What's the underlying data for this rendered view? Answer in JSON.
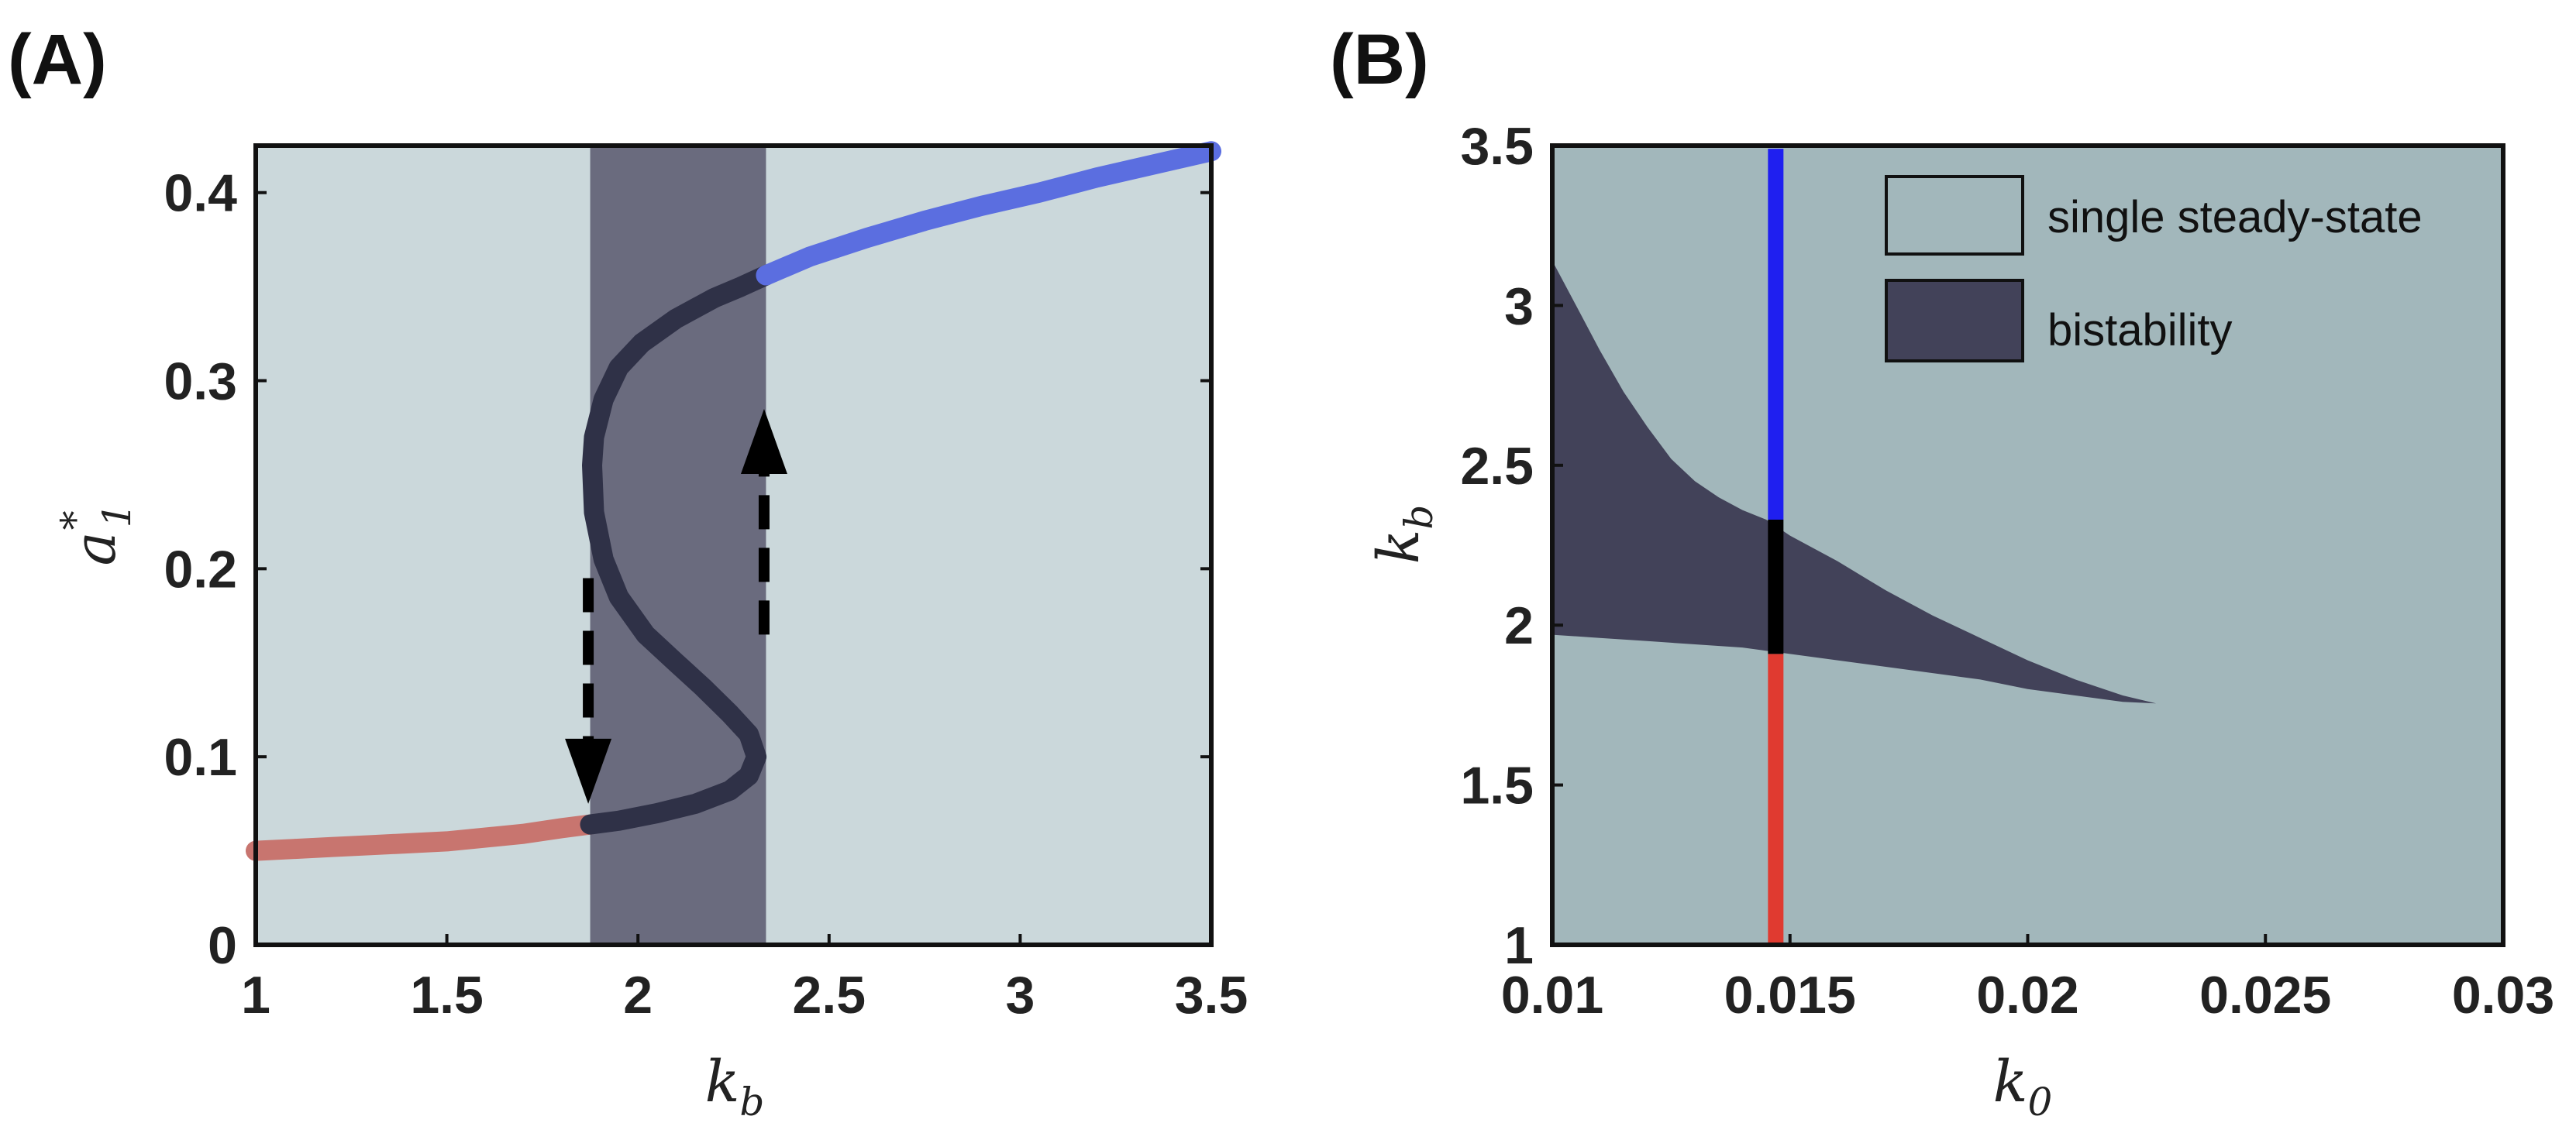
{
  "chart_data": [
    {
      "panel_label": "(A)",
      "type": "scatter",
      "xlabel": {
        "main": "k",
        "sub": "b"
      },
      "ylabel": {
        "main": "a",
        "sub": "1",
        "sup": "*"
      },
      "xlim": [
        1,
        3.5
      ],
      "ylim": [
        0,
        0.425
      ],
      "xticks": [
        "1",
        "1.5",
        "2",
        "2.5",
        "3",
        "3.5"
      ],
      "xtick_values": [
        1,
        1.5,
        2,
        2.5,
        3,
        3.5
      ],
      "yticks": [
        "0",
        "0.1",
        "0.2",
        "0.3",
        "0.4"
      ],
      "ytick_values": [
        0,
        0.1,
        0.2,
        0.3,
        0.4
      ],
      "grid": false,
      "background_color": "#cbd8db",
      "bistable_band": {
        "x": [
          1.875,
          2.335
        ],
        "color": "#6a6b7e"
      },
      "series": [
        {
          "color": "#c8756f",
          "points": [
            [
              1.0,
              0.05
            ],
            [
              1.1,
              0.051
            ],
            [
              1.2,
              0.052
            ],
            [
              1.3,
              0.053
            ],
            [
              1.4,
              0.054
            ],
            [
              1.5,
              0.055
            ],
            [
              1.6,
              0.057
            ],
            [
              1.7,
              0.059
            ],
            [
              1.8,
              0.062
            ],
            [
              1.875,
              0.064
            ]
          ]
        },
        {
          "color": "#2f3147",
          "points": [
            [
              1.875,
              0.064
            ],
            [
              1.95,
              0.066
            ],
            [
              2.05,
              0.07
            ],
            [
              2.15,
              0.075
            ],
            [
              2.24,
              0.082
            ],
            [
              2.29,
              0.09
            ],
            [
              2.31,
              0.1
            ],
            [
              2.29,
              0.112
            ],
            [
              2.24,
              0.123
            ],
            [
              2.17,
              0.137
            ],
            [
              2.1,
              0.15
            ],
            [
              2.02,
              0.165
            ],
            [
              1.95,
              0.185
            ],
            [
              1.91,
              0.205
            ],
            [
              1.885,
              0.23
            ],
            [
              1.88,
              0.255
            ],
            [
              1.885,
              0.27
            ],
            [
              1.91,
              0.29
            ],
            [
              1.95,
              0.307
            ],
            [
              2.01,
              0.32
            ],
            [
              2.1,
              0.333
            ],
            [
              2.2,
              0.344
            ],
            [
              2.27,
              0.35
            ],
            [
              2.335,
              0.356
            ]
          ]
        },
        {
          "color": "#5b6ee0",
          "points": [
            [
              2.335,
              0.356
            ],
            [
              2.45,
              0.366
            ],
            [
              2.6,
              0.376
            ],
            [
              2.75,
              0.385
            ],
            [
              2.9,
              0.393
            ],
            [
              3.05,
              0.4
            ],
            [
              3.2,
              0.408
            ],
            [
              3.35,
              0.415
            ],
            [
              3.5,
              0.422
            ]
          ]
        }
      ],
      "arrows": [
        {
          "x": 1.87,
          "from": 0.195,
          "to": 0.075,
          "style": "dashed",
          "head": "down"
        },
        {
          "x": 2.33,
          "from": 0.165,
          "to": 0.285,
          "style": "dashed",
          "head": "up"
        }
      ]
    },
    {
      "panel_label": "(B)",
      "type": "heatmap",
      "xlabel": {
        "main": "k",
        "sub": "0"
      },
      "ylabel": {
        "main": "k",
        "sub": "b"
      },
      "xlim": [
        0.01,
        0.03
      ],
      "ylim": [
        1,
        3.5
      ],
      "xticks": [
        "0.01",
        "0.015",
        "0.02",
        "0.025",
        "0.03"
      ],
      "xtick_values": [
        0.01,
        0.015,
        0.02,
        0.025,
        0.03
      ],
      "yticks": [
        "1",
        "1.5",
        "2",
        "2.5",
        "3",
        "3.5"
      ],
      "ytick_values": [
        1,
        1.5,
        2,
        2.5,
        3,
        3.5
      ],
      "grid": false,
      "legend_position": "top-right",
      "regions": [
        {
          "name": "single steady-state",
          "color": "#a2b7bb"
        },
        {
          "name": "bistability",
          "color": "#424259",
          "upper_boundary": [
            [
              0.01,
              3.14
            ],
            [
              0.0105,
              3.0
            ],
            [
              0.011,
              2.86
            ],
            [
              0.0115,
              2.73
            ],
            [
              0.012,
              2.62
            ],
            [
              0.0125,
              2.52
            ],
            [
              0.013,
              2.45
            ],
            [
              0.0135,
              2.4
            ],
            [
              0.014,
              2.36
            ],
            [
              0.0145,
              2.33
            ],
            [
              0.015,
              2.28
            ],
            [
              0.016,
              2.2
            ],
            [
              0.017,
              2.11
            ],
            [
              0.018,
              2.03
            ],
            [
              0.019,
              1.96
            ],
            [
              0.02,
              1.89
            ],
            [
              0.021,
              1.83
            ],
            [
              0.022,
              1.78
            ],
            [
              0.0227,
              1.755
            ]
          ],
          "lower_boundary": [
            [
              0.01,
              1.97
            ],
            [
              0.011,
              1.96
            ],
            [
              0.012,
              1.95
            ],
            [
              0.013,
              1.94
            ],
            [
              0.014,
              1.93
            ],
            [
              0.015,
              1.91
            ],
            [
              0.016,
              1.89
            ],
            [
              0.017,
              1.87
            ],
            [
              0.018,
              1.85
            ],
            [
              0.019,
              1.83
            ],
            [
              0.02,
              1.8
            ],
            [
              0.021,
              1.78
            ],
            [
              0.022,
              1.76
            ],
            [
              0.0227,
              1.755
            ]
          ]
        }
      ],
      "vertical_line": {
        "x": 0.0147,
        "segments": [
          {
            "from": 1.0,
            "to": 1.91,
            "color": "#e03a30"
          },
          {
            "from": 1.91,
            "to": 2.33,
            "color": "#000000"
          },
          {
            "from": 2.33,
            "to": 3.49,
            "color": "#1f1ff0"
          }
        ]
      }
    }
  ]
}
